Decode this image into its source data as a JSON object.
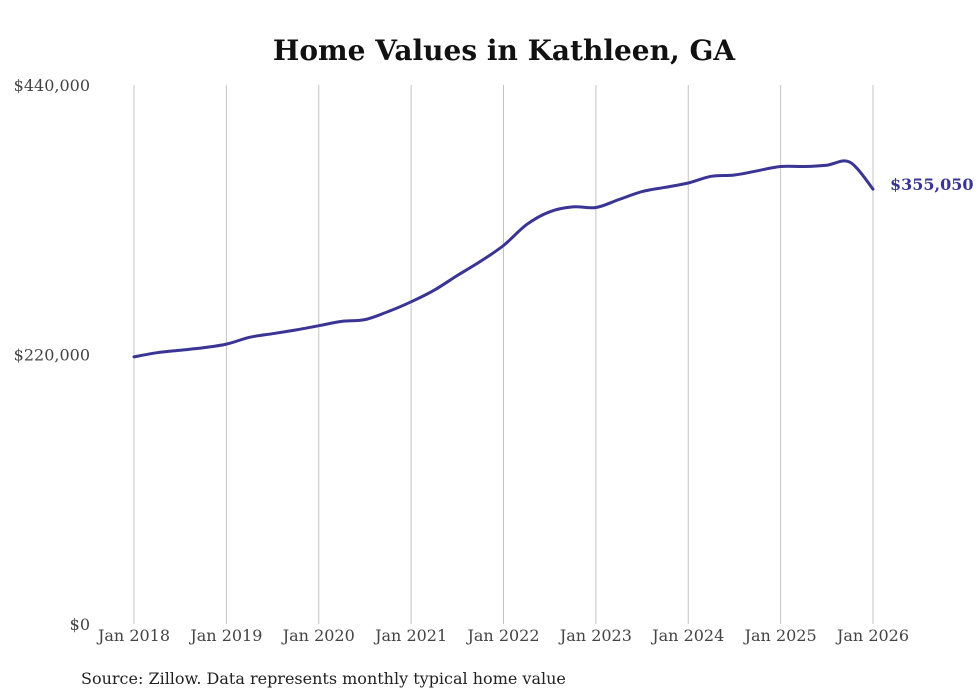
{
  "chart_data": {
    "type": "line",
    "title": "Home Values in Kathleen, GA",
    "xlabel": "",
    "ylabel": "",
    "ylim": [
      0,
      440000
    ],
    "y_ticks": [
      {
        "value": 0,
        "label": "$0"
      },
      {
        "value": 220000,
        "label": "$220,000"
      },
      {
        "value": 440000,
        "label": "$440,000"
      }
    ],
    "x_ticks": [
      {
        "value": 2018,
        "label": "Jan 2018"
      },
      {
        "value": 2019,
        "label": "Jan 2019"
      },
      {
        "value": 2020,
        "label": "Jan 2020"
      },
      {
        "value": 2021,
        "label": "Jan 2021"
      },
      {
        "value": 2022,
        "label": "Jan 2022"
      },
      {
        "value": 2023,
        "label": "Jan 2023"
      },
      {
        "value": 2024,
        "label": "Jan 2024"
      },
      {
        "value": 2025,
        "label": "Jan 2025"
      },
      {
        "value": 2026,
        "label": "Jan 2026"
      }
    ],
    "xlim": [
      2018,
      2026
    ],
    "grid": "vertical",
    "series": [
      {
        "name": "Typical home value",
        "color": "#3a3494",
        "x": [
          2018.0,
          2018.25,
          2018.5,
          2018.75,
          2019.0,
          2019.25,
          2019.5,
          2019.75,
          2020.0,
          2020.25,
          2020.5,
          2020.75,
          2021.0,
          2021.25,
          2021.5,
          2021.75,
          2022.0,
          2022.25,
          2022.5,
          2022.75,
          2023.0,
          2023.25,
          2023.5,
          2023.75,
          2024.0,
          2024.25,
          2024.5,
          2024.75,
          2025.0,
          2025.25,
          2025.5,
          2025.75,
          2026.0
        ],
        "values": [
          218000,
          221500,
          223500,
          225500,
          228500,
          234000,
          237000,
          240000,
          243500,
          247000,
          248500,
          255000,
          263000,
          272500,
          284500,
          296000,
          309000,
          326000,
          336500,
          340500,
          340000,
          346500,
          353000,
          356500,
          360000,
          365500,
          366500,
          370000,
          373500,
          373500,
          374500,
          377000,
          355050
        ]
      }
    ],
    "end_label": "$355,050",
    "source": "Source: Zillow. Data represents monthly typical home value"
  }
}
